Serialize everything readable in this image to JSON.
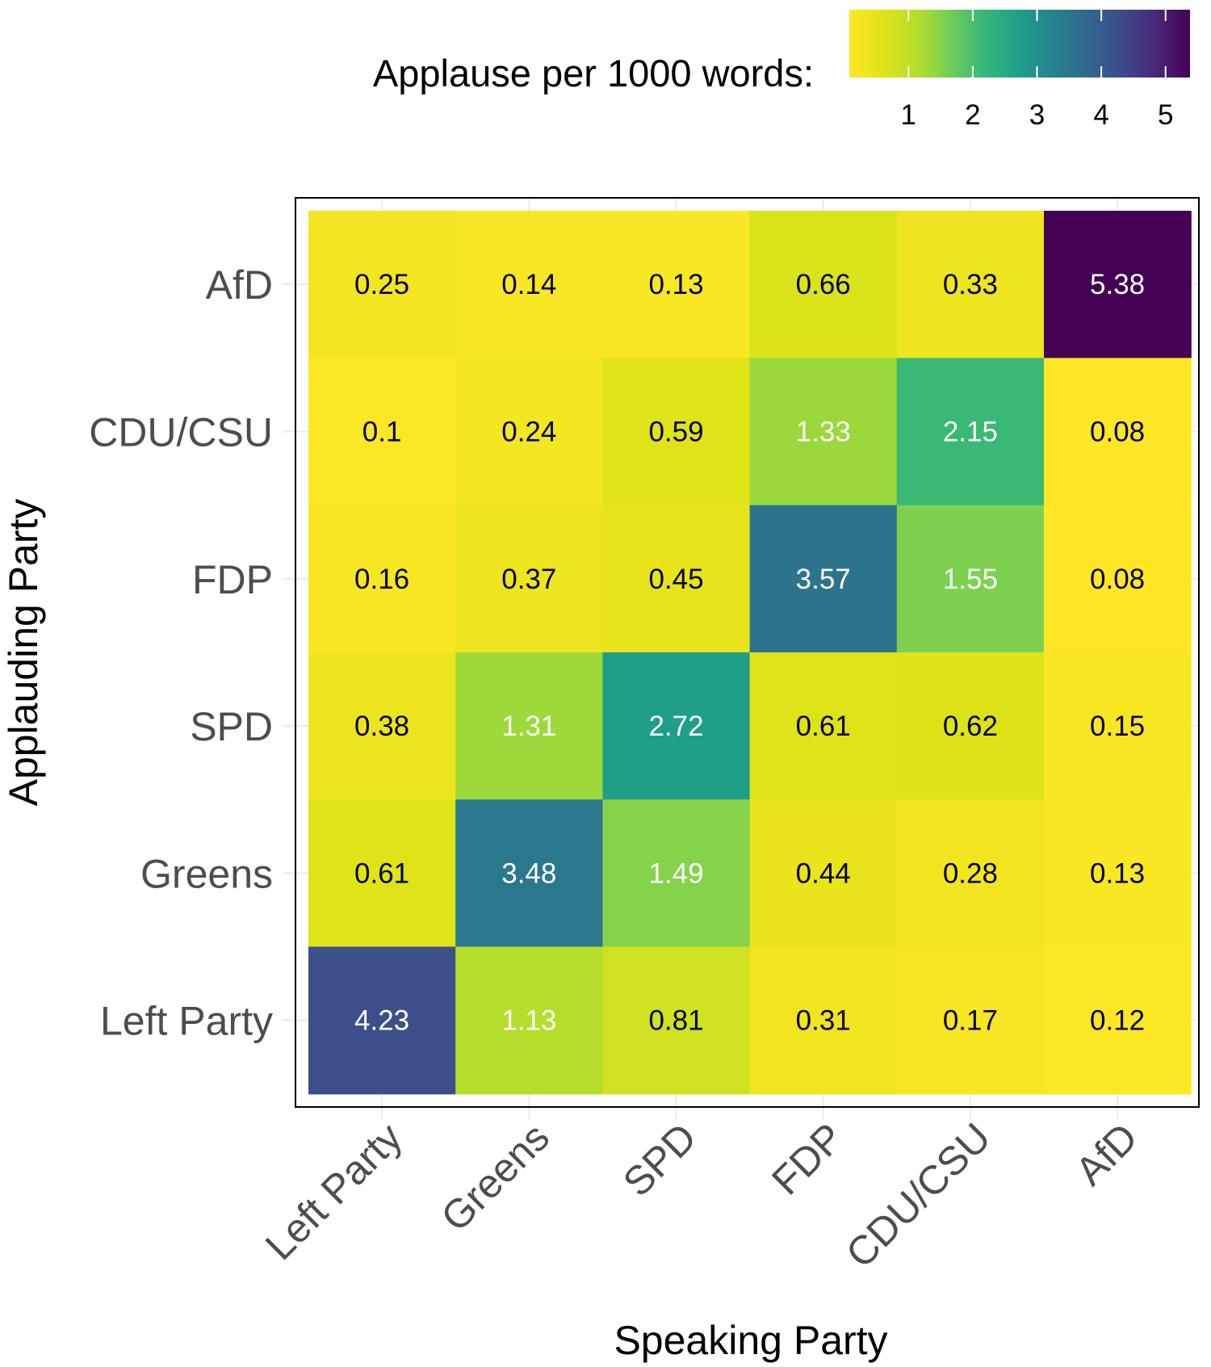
{
  "chart_data": {
    "type": "heatmap",
    "xlabel": "Speaking Party",
    "ylabel": "Applauding Party",
    "x_categories": [
      "Left Party",
      "Greens",
      "SPD",
      "FDP",
      "CDU/CSU",
      "AfD"
    ],
    "y_categories": [
      "AfD",
      "CDU/CSU",
      "FDP",
      "SPD",
      "Greens",
      "Left Party"
    ],
    "values": [
      [
        0.25,
        0.14,
        0.13,
        0.66,
        0.33,
        5.38
      ],
      [
        0.1,
        0.24,
        0.59,
        1.33,
        2.15,
        0.08
      ],
      [
        0.16,
        0.37,
        0.45,
        3.57,
        1.55,
        0.08
      ],
      [
        0.38,
        1.31,
        2.72,
        0.61,
        0.62,
        0.15
      ],
      [
        0.61,
        3.48,
        1.49,
        0.44,
        0.28,
        0.13
      ],
      [
        4.23,
        1.13,
        0.81,
        0.31,
        0.17,
        0.12
      ]
    ],
    "value_labels": [
      [
        "0.25",
        "0.14",
        "0.13",
        "0.66",
        "0.33",
        "5.38"
      ],
      [
        "0.1",
        "0.24",
        "0.59",
        "1.33",
        "2.15",
        "0.08"
      ],
      [
        "0.16",
        "0.37",
        "0.45",
        "3.57",
        "1.55",
        "0.08"
      ],
      [
        "0.38",
        "1.31",
        "2.72",
        "0.61",
        "0.62",
        "0.15"
      ],
      [
        "0.61",
        "3.48",
        "1.49",
        "0.44",
        "0.28",
        "0.13"
      ],
      [
        "4.23",
        "1.13",
        "0.81",
        "0.31",
        "0.17",
        "0.12"
      ]
    ],
    "colorscale": "viridis (reversed: low = yellow, high = dark purple)",
    "color_range": [
      0.08,
      5.38
    ],
    "legend": {
      "title": "Applause per 1000 words:",
      "ticks": [
        1,
        2,
        3,
        4,
        5
      ],
      "tick_labels": [
        "1",
        "2",
        "3",
        "4",
        "5"
      ],
      "placement": "top-right"
    },
    "grid": true
  }
}
